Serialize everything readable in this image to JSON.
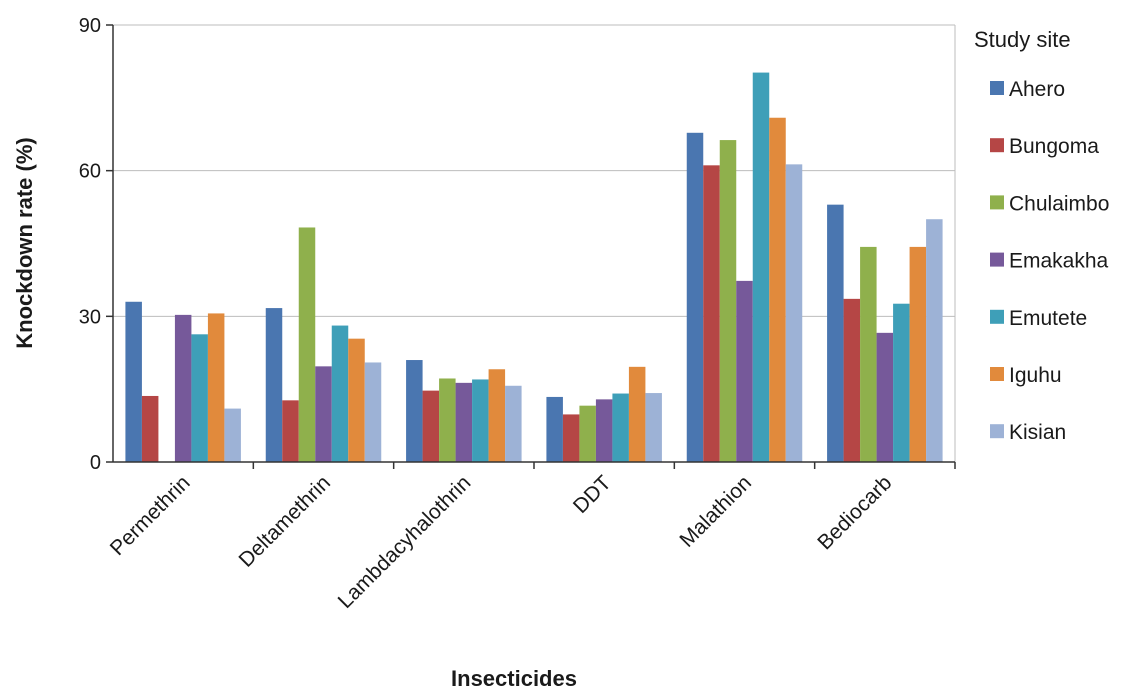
{
  "chart_data": {
    "type": "bar",
    "xlabel": "Insecticides",
    "ylabel": "Knockdown rate (%)",
    "ylim": [
      0,
      90
    ],
    "yticks": [
      0,
      30,
      60,
      90
    ],
    "grid": true,
    "legend_title": "Study site",
    "legend_position": "right",
    "categories": [
      "Permethrin",
      "Deltamethrin",
      "Lambdacyhalothrin",
      "DDT",
      "Malathion",
      "Bediocarb"
    ],
    "series": [
      {
        "name": "Ahero",
        "color": "#4a76b0",
        "values": [
          33,
          31.7,
          21,
          13.4,
          67.8,
          53
        ]
      },
      {
        "name": "Bungoma",
        "color": "#b54645",
        "values": [
          13.6,
          12.7,
          14.7,
          9.8,
          61.1,
          33.6
        ]
      },
      {
        "name": "Chulaimbo",
        "color": "#8fb04c",
        "values": [
          0,
          48.3,
          17.2,
          11.6,
          66.3,
          44.3
        ]
      },
      {
        "name": "Emakakha",
        "color": "#76599a",
        "values": [
          30.3,
          19.7,
          16.3,
          12.9,
          37.3,
          26.6
        ]
      },
      {
        "name": "Emutete",
        "color": "#3e9fb8",
        "values": [
          26.3,
          28.1,
          17,
          14.1,
          80.2,
          32.6
        ]
      },
      {
        "name": "Iguhu",
        "color": "#e18a3c",
        "values": [
          30.6,
          25.4,
          19.1,
          19.6,
          70.9,
          44.3
        ]
      },
      {
        "name": "Kisian",
        "color": "#9db2d6",
        "values": [
          11,
          20.5,
          15.7,
          14.2,
          61.3,
          50
        ]
      }
    ]
  }
}
